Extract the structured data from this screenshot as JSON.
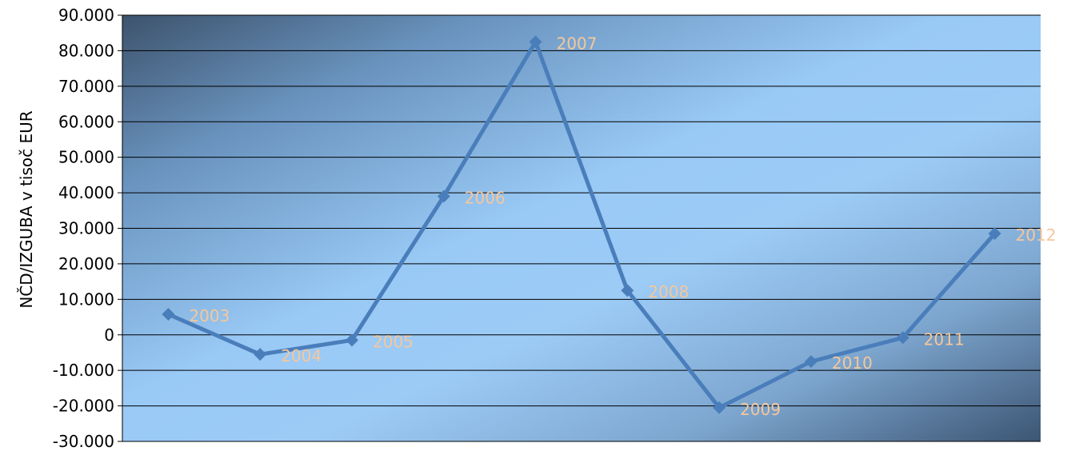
{
  "chart_data": {
    "type": "line",
    "title": "",
    "xlabel": "",
    "ylabel": "NČD/IZGUBA v tisoč EUR",
    "ylim": [
      -30000,
      90000
    ],
    "yticks": [
      90000,
      80000,
      70000,
      60000,
      50000,
      40000,
      30000,
      20000,
      10000,
      0,
      -10000,
      -20000,
      -30000
    ],
    "ytick_labels": [
      "90.000",
      "80.000",
      "70.000",
      "60.000",
      "50.000",
      "40.000",
      "30.000",
      "20.000",
      "10.000",
      "0",
      "-10.000",
      "-20.000",
      "-30.000"
    ],
    "grid": true,
    "legend": "none",
    "categories": [
      "2003",
      "2004",
      "2005",
      "2006",
      "2007",
      "2008",
      "2009",
      "2010",
      "2011",
      "2012"
    ],
    "series": [
      {
        "values": [
          5800,
          -5500,
          -1500,
          39000,
          82500,
          12500,
          -20500,
          -7500,
          -800,
          28500
        ],
        "color": "#4a7ebb"
      }
    ],
    "data_labels": [
      "2003",
      "2004",
      "2005",
      "2006",
      "2007",
      "2008",
      "2009",
      "2010",
      "2011",
      "2012"
    ],
    "data_label_color": "#f6c79b"
  }
}
